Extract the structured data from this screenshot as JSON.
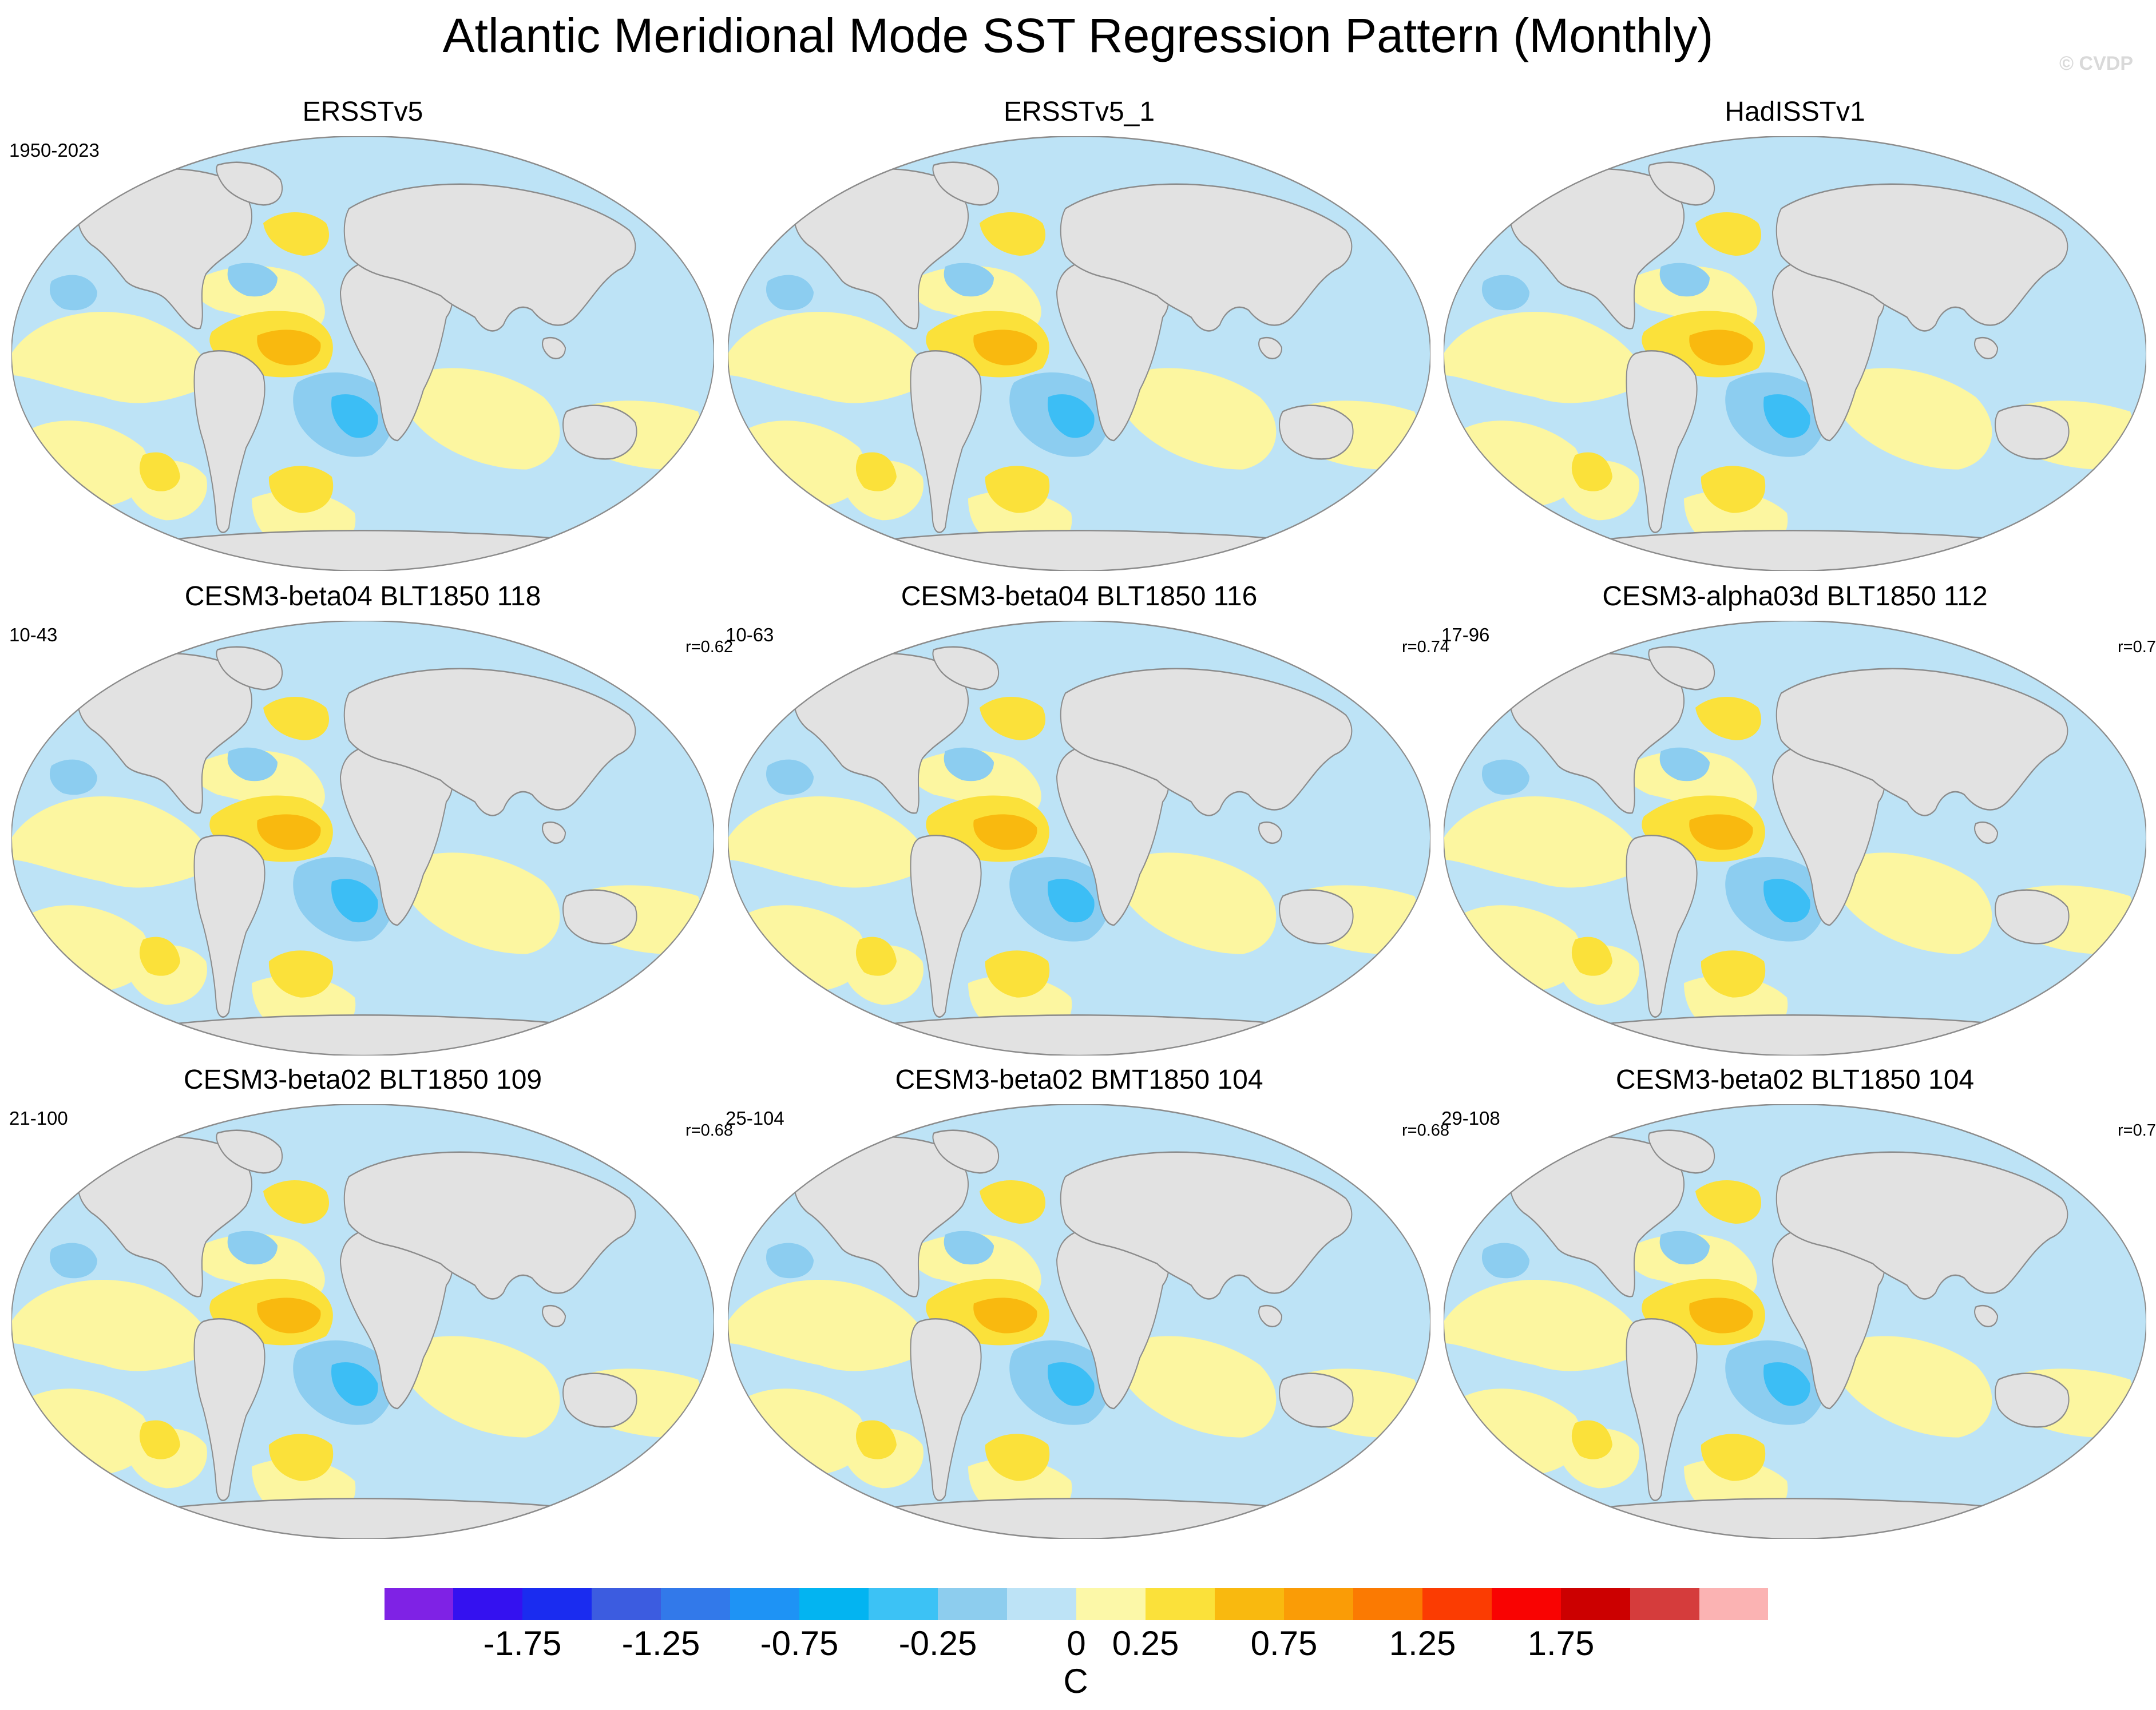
{
  "title": "Atlantic Meridional Mode SST Regression Pattern (Monthly)",
  "watermark": "© CVDP",
  "colors": {
    "land": "#e2e2e2",
    "coast": "#8c8c8c",
    "boundary": "#8c8c8c",
    "neg_light": "#bde3f6",
    "neg_mid": "#8ccdf0",
    "neg_strong": "#3cbef5",
    "pos_light": "#fcf6a0",
    "pos_mid": "#fbe13a",
    "pos_strong": "#f9b90f"
  },
  "chart_data": {
    "type": "heatmap",
    "projection": "global map (Robinson-like)",
    "variable": "SST regression on AMM index",
    "panels": [
      {
        "title": "ERSSTv5",
        "period": "1950-2023",
        "r": ""
      },
      {
        "title": "ERSSTv5_1",
        "period": "",
        "r": ""
      },
      {
        "title": "HadISSTv1",
        "period": "",
        "r": ""
      },
      {
        "title": "CESM3-beta04 BLT1850 118",
        "period": "10-43",
        "r": "r=0.62"
      },
      {
        "title": "CESM3-beta04 BLT1850 116",
        "period": "10-63",
        "r": "r=0.74"
      },
      {
        "title": "CESM3-alpha03d BLT1850 112",
        "period": "17-96",
        "r": "r=0.7"
      },
      {
        "title": "CESM3-beta02 BLT1850 109",
        "period": "21-100",
        "r": "r=0.68"
      },
      {
        "title": "CESM3-beta02 BMT1850 104",
        "period": "25-104",
        "r": "r=0.68"
      },
      {
        "title": "CESM3-beta02 BLT1850 104",
        "period": "29-108",
        "r": "r=0.7"
      }
    ],
    "colorbar": {
      "label": "C",
      "colors": [
        "#7f22e5",
        "#3411f0",
        "#1a2cf0",
        "#3c5ce0",
        "#3279ea",
        "#1e93f5",
        "#03b4f1",
        "#3cc2f5",
        "#8dcdee",
        "#bde3f6",
        "#fcf8a8",
        "#fbe13a",
        "#f9b90f",
        "#fa9c06",
        "#fb7a02",
        "#fb3c02",
        "#f90302",
        "#cc0000",
        "#d53c3c",
        "#fbb3b3"
      ],
      "ticks": [
        "-1.75",
        "-1.25",
        "-0.75",
        "-0.25",
        "0",
        "0.25",
        "0.75",
        "1.25",
        "1.75"
      ]
    }
  }
}
